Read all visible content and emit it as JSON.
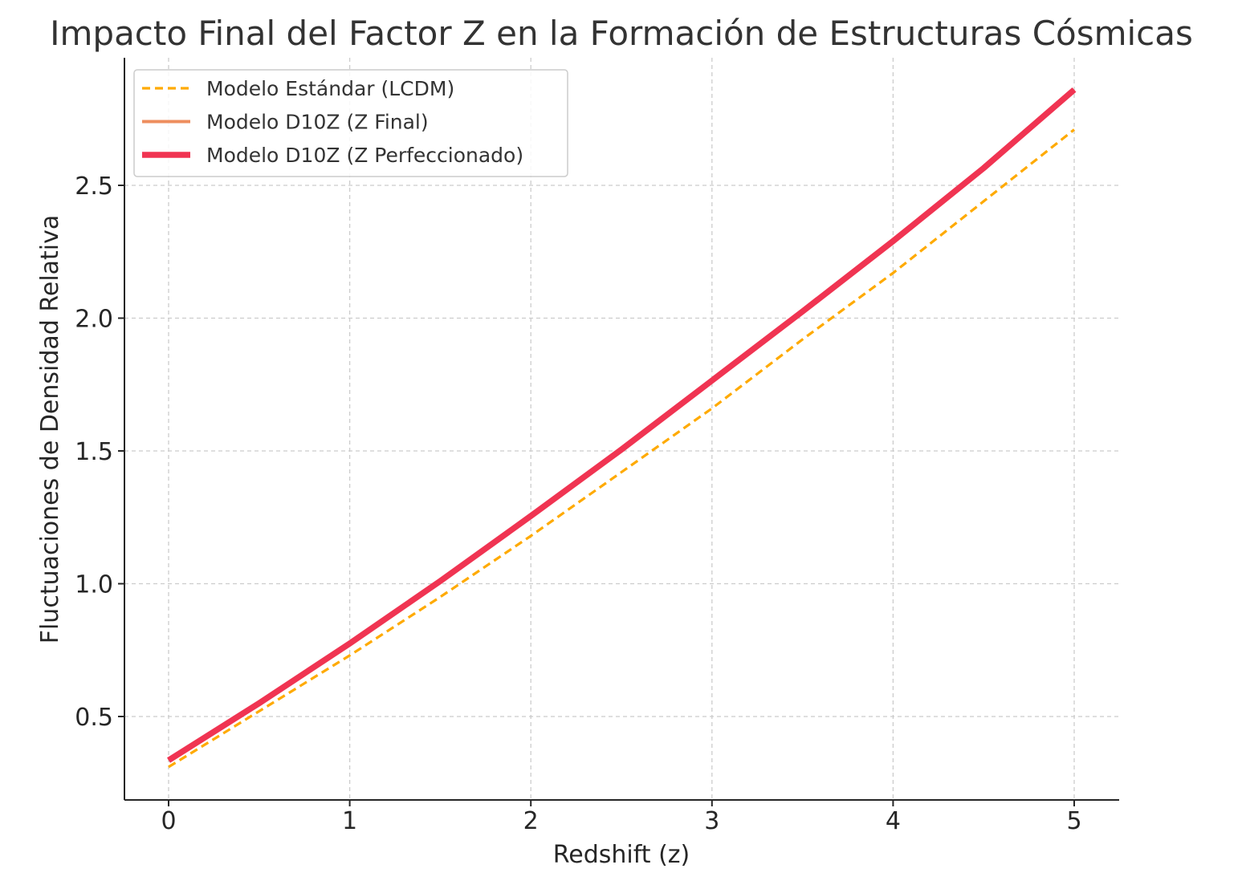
{
  "chart_data": {
    "type": "line",
    "title": "Impacto Final del Factor Z en la Formación de Estructuras Cósmicas",
    "xlabel": "Redshift (z)",
    "ylabel": "Fluctuaciones de Densidad Relativa",
    "xlim": [
      -0.25,
      5.25
    ],
    "ylim": [
      0.19,
      2.97
    ],
    "xticks": [
      0,
      1,
      2,
      3,
      4,
      5
    ],
    "xtick_labels": [
      "0",
      "1",
      "2",
      "3",
      "4",
      "5"
    ],
    "yticks": [
      0.5,
      1.0,
      1.5,
      2.0,
      2.5
    ],
    "ytick_labels": [
      "0.5",
      "1.0",
      "1.5",
      "2.0",
      "2.5"
    ],
    "grid": true,
    "legend_position": "top-left",
    "series": [
      {
        "name": "Modelo Estándar (LCDM)",
        "color": "#FFAA00",
        "style": "dashed",
        "x": [
          0,
          0.5,
          1,
          1.5,
          2,
          2.5,
          3,
          3.5,
          4,
          4.5,
          5
        ],
        "y": [
          0.31,
          0.52,
          0.73,
          0.95,
          1.18,
          1.42,
          1.66,
          1.92,
          2.17,
          2.44,
          2.71
        ]
      },
      {
        "name": "Modelo D10Z (Z Final)",
        "color": "#EE8E5E",
        "style": "solid",
        "x": [
          0,
          0.5,
          1,
          1.5,
          2,
          2.5,
          3,
          3.5,
          4,
          4.5,
          5
        ],
        "y": [
          0.335,
          0.55,
          0.775,
          1.01,
          1.255,
          1.505,
          1.765,
          2.025,
          2.29,
          2.565,
          2.86
        ]
      },
      {
        "name": "Modelo D10Z (Z Perfeccionado)",
        "color": "#F03452",
        "style": "solid-thick",
        "x": [
          0,
          0.5,
          1,
          1.5,
          2,
          2.5,
          3,
          3.5,
          4,
          4.5,
          5
        ],
        "y": [
          0.335,
          0.55,
          0.775,
          1.01,
          1.255,
          1.505,
          1.765,
          2.025,
          2.29,
          2.565,
          2.86
        ]
      }
    ]
  }
}
